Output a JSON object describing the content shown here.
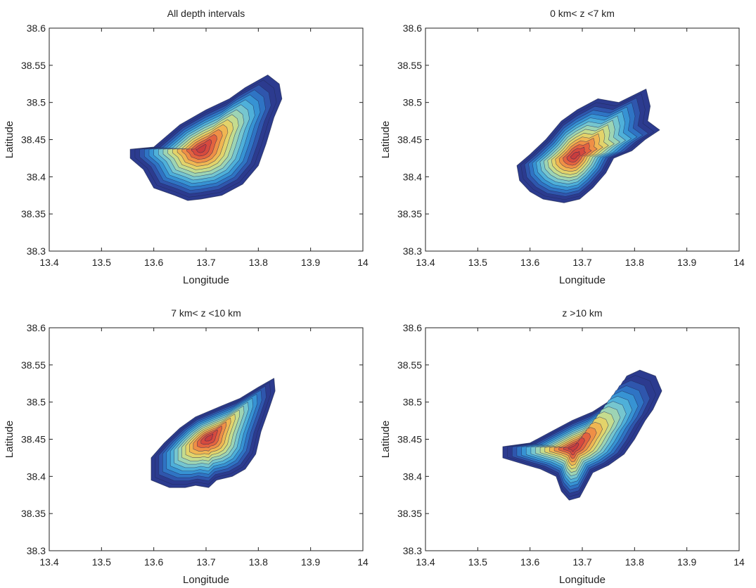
{
  "chart_data": [
    {
      "type": "contour",
      "title": "All depth intervals",
      "xlabel": "Longitude",
      "ylabel": "Latitude",
      "xlim": [
        13.4,
        14.0
      ],
      "ylim": [
        38.3,
        38.6
      ],
      "xticks": [
        "13.4",
        "13.5",
        "13.6",
        "13.7",
        "13.8",
        "13.9",
        "14"
      ],
      "yticks": [
        "38.3",
        "38.35",
        "38.4",
        "38.45",
        "38.5",
        "38.55",
        "38.6"
      ],
      "outline": [
        [
          13.555,
          38.437
        ],
        [
          13.6,
          38.44
        ],
        [
          13.65,
          38.47
        ],
        [
          13.7,
          38.49
        ],
        [
          13.745,
          38.505
        ],
        [
          13.775,
          38.52
        ],
        [
          13.818,
          38.537
        ],
        [
          13.84,
          38.525
        ],
        [
          13.845,
          38.505
        ],
        [
          13.83,
          38.48
        ],
        [
          13.815,
          38.445
        ],
        [
          13.8,
          38.415
        ],
        [
          13.77,
          38.39
        ],
        [
          13.73,
          38.375
        ],
        [
          13.69,
          38.37
        ],
        [
          13.665,
          38.368
        ],
        [
          13.64,
          38.375
        ],
        [
          13.6,
          38.385
        ],
        [
          13.58,
          38.41
        ],
        [
          13.555,
          38.425
        ]
      ],
      "peak": [
        13.69,
        38.437
      ],
      "levels": 15
    },
    {
      "type": "contour",
      "title": "0 km< z <7 km",
      "xlabel": "Longitude",
      "ylabel": "Latitude",
      "xlim": [
        13.4,
        14.0
      ],
      "ylim": [
        38.3,
        38.6
      ],
      "xticks": [
        "13.4",
        "13.5",
        "13.6",
        "13.7",
        "13.8",
        "13.9",
        "14"
      ],
      "yticks": [
        "38.3",
        "38.35",
        "38.4",
        "38.45",
        "38.5",
        "38.55",
        "38.6"
      ],
      "outline": [
        [
          13.575,
          38.415
        ],
        [
          13.6,
          38.43
        ],
        [
          13.63,
          38.45
        ],
        [
          13.66,
          38.475
        ],
        [
          13.69,
          38.49
        ],
        [
          13.73,
          38.505
        ],
        [
          13.77,
          38.5
        ],
        [
          13.822,
          38.518
        ],
        [
          13.83,
          38.495
        ],
        [
          13.825,
          38.475
        ],
        [
          13.848,
          38.463
        ],
        [
          13.82,
          38.45
        ],
        [
          13.795,
          38.435
        ],
        [
          13.76,
          38.425
        ],
        [
          13.745,
          38.405
        ],
        [
          13.72,
          38.385
        ],
        [
          13.695,
          38.37
        ],
        [
          13.665,
          38.365
        ],
        [
          13.625,
          38.37
        ],
        [
          13.6,
          38.38
        ],
        [
          13.58,
          38.395
        ]
      ],
      "peak": [
        13.685,
        38.428
      ],
      "levels": 15
    },
    {
      "type": "contour",
      "title": "7 km< z <10 km",
      "xlabel": "Longitude",
      "ylabel": "Latitude",
      "xlim": [
        13.4,
        14.0
      ],
      "ylim": [
        38.3,
        38.6
      ],
      "xticks": [
        "13.4",
        "13.5",
        "13.6",
        "13.7",
        "13.8",
        "13.9",
        "14"
      ],
      "yticks": [
        "38.3",
        "38.35",
        "38.4",
        "38.45",
        "38.5",
        "38.55",
        "38.6"
      ],
      "outline": [
        [
          13.595,
          38.425
        ],
        [
          13.62,
          38.445
        ],
        [
          13.65,
          38.465
        ],
        [
          13.68,
          38.48
        ],
        [
          13.73,
          38.495
        ],
        [
          13.765,
          38.505
        ],
        [
          13.8,
          38.52
        ],
        [
          13.83,
          38.532
        ],
        [
          13.832,
          38.515
        ],
        [
          13.82,
          38.49
        ],
        [
          13.805,
          38.46
        ],
        [
          13.795,
          38.43
        ],
        [
          13.775,
          38.41
        ],
        [
          13.75,
          38.4
        ],
        [
          13.72,
          38.395
        ],
        [
          13.705,
          38.385
        ],
        [
          13.68,
          38.388
        ],
        [
          13.66,
          38.385
        ],
        [
          13.63,
          38.385
        ],
        [
          13.595,
          38.395
        ]
      ],
      "peak": [
        13.705,
        38.452
      ],
      "levels": 15
    },
    {
      "type": "contour",
      "title": "z >10 km",
      "xlabel": "Longitude",
      "ylabel": "Latitude",
      "xlim": [
        13.4,
        14.0
      ],
      "ylim": [
        38.3,
        38.6
      ],
      "xticks": [
        "13.4",
        "13.5",
        "13.6",
        "13.7",
        "13.8",
        "13.9",
        "14"
      ],
      "yticks": [
        "38.3",
        "38.35",
        "38.4",
        "38.45",
        "38.5",
        "38.55",
        "38.6"
      ],
      "outline": [
        [
          13.548,
          38.44
        ],
        [
          13.6,
          38.445
        ],
        [
          13.64,
          38.46
        ],
        [
          13.68,
          38.475
        ],
        [
          13.72,
          38.487
        ],
        [
          13.76,
          38.505
        ],
        [
          13.785,
          38.535
        ],
        [
          13.81,
          38.543
        ],
        [
          13.84,
          38.535
        ],
        [
          13.852,
          38.515
        ],
        [
          13.835,
          38.49
        ],
        [
          13.82,
          38.475
        ],
        [
          13.8,
          38.45
        ],
        [
          13.78,
          38.43
        ],
        [
          13.75,
          38.415
        ],
        [
          13.72,
          38.405
        ],
        [
          13.705,
          38.385
        ],
        [
          13.695,
          38.372
        ],
        [
          13.675,
          38.368
        ],
        [
          13.66,
          38.38
        ],
        [
          13.65,
          38.4
        ],
        [
          13.62,
          38.41
        ],
        [
          13.595,
          38.415
        ],
        [
          13.548,
          38.425
        ]
      ],
      "peak": [
        13.682,
        38.438
      ],
      "levels": 15
    }
  ]
}
